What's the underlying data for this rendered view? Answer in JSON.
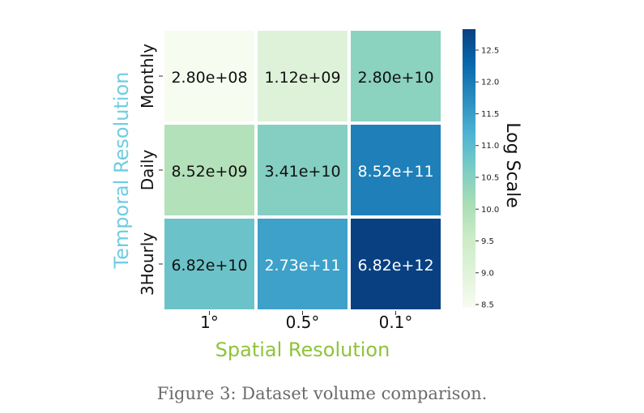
{
  "caption": "Figure 3: Dataset volume comparison.",
  "colors": {
    "xlabel": "#8fc33a",
    "ylabel": "#6fcde3",
    "scale": [
      "#f7fcf0",
      "#e0f3db",
      "#ccebc5",
      "#a8ddb5",
      "#7bccc4",
      "#4eb3d3",
      "#2b8cbe",
      "#0868ac",
      "#084081"
    ]
  },
  "chart_data": {
    "type": "heatmap",
    "x_categories": [
      "1°",
      "0.5°",
      "0.1°"
    ],
    "y_categories": [
      "Monthly",
      "Daily",
      "3Hourly"
    ],
    "xlabel": "Spatial Resolution",
    "ylabel": "Temporal Resolution",
    "values": [
      [
        280000000.0,
        1120000000.0,
        28000000000.0
      ],
      [
        8520000000.0,
        34100000000.0,
        852000000000.0
      ],
      [
        68200000000.0,
        273000000000.0,
        6820000000000.0
      ]
    ],
    "labels": [
      [
        "2.80e+08",
        "1.12e+09",
        "2.80e+10"
      ],
      [
        "8.52e+09",
        "3.41e+10",
        "8.52e+11"
      ],
      [
        "6.82e+10",
        "2.73e+11",
        "6.82e+12"
      ]
    ],
    "colorbar": {
      "label": "Log Scale",
      "range": [
        8.45,
        12.83
      ],
      "ticks": [
        8.5,
        9.0,
        9.5,
        10.0,
        10.5,
        11.0,
        11.5,
        12.0,
        12.5
      ],
      "tick_labels": [
        "8.5",
        "9.0",
        "9.5",
        "10.0",
        "10.5",
        "11.0",
        "11.5",
        "12.0",
        "12.5"
      ]
    }
  }
}
